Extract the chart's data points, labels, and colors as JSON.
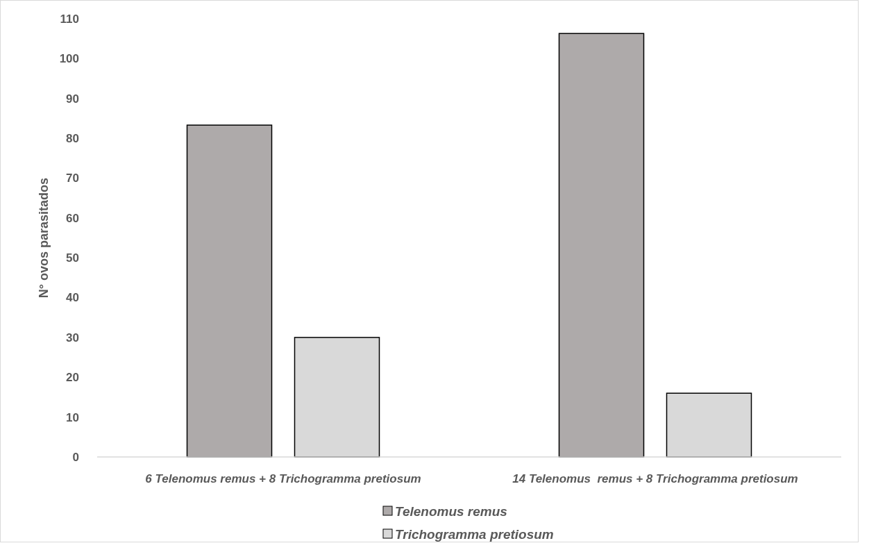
{
  "chart_data": {
    "type": "bar",
    "ylabel": "N° ovos parasitados",
    "categories": [
      "6 Telenomus remus + 8 Trichogramma pretiosum",
      "14 Telenomus  remus + 8 Trichogramma pretiosum"
    ],
    "series": [
      {
        "name": "Telenomus remus",
        "color": "#aeaaaa",
        "values": [
          83.3,
          106.3
        ]
      },
      {
        "name": "Trichogramma pretiosum",
        "color": "#d9d9d9",
        "values": [
          30,
          16
        ]
      }
    ],
    "ylim": [
      0,
      110
    ],
    "yticks": [
      0,
      10,
      20,
      30,
      40,
      50,
      60,
      70,
      80,
      90,
      100,
      110
    ],
    "grid": false,
    "legend": "bottom"
  }
}
